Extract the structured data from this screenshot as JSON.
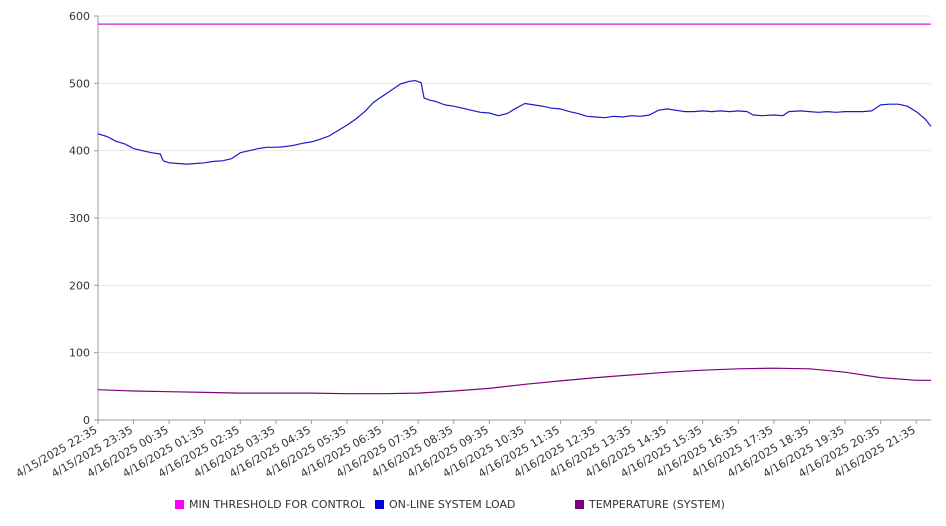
{
  "chart_data": {
    "type": "line",
    "ylim": [
      0,
      600
    ],
    "yticks": [
      0,
      100,
      200,
      300,
      400,
      500,
      600
    ],
    "grid": true,
    "legend_position": "bottom",
    "x_start": "4/15/2025 22:35",
    "x_end": "4/16/2025 22:00",
    "xtick_labels": [
      "4/15/2025 22:35",
      "4/15/2025 23:35",
      "4/16/2025 00:35",
      "4/16/2025 01:35",
      "4/16/2025 02:35",
      "4/16/2025 03:35",
      "4/16/2025 04:35",
      "4/16/2025 05:35",
      "4/16/2025 06:35",
      "4/16/2025 07:35",
      "4/16/2025 08:35",
      "4/16/2025 09:35",
      "4/16/2025 10:35",
      "4/16/2025 11:35",
      "4/16/2025 12:35",
      "4/16/2025 13:35",
      "4/16/2025 14:35",
      "4/16/2025 15:35",
      "4/16/2025 16:35",
      "4/16/2025 17:35",
      "4/16/2025 18:35",
      "4/16/2025 19:35",
      "4/16/2025 20:35",
      "4/16/2025 21:35"
    ],
    "series": [
      {
        "name": "MIN THRESHOLD FOR CONTROL",
        "color": "#cc22cc",
        "points": [
          [
            "4/15/2025 22:35",
            588
          ],
          [
            "4/16/2025 22:00",
            588
          ]
        ]
      },
      {
        "name": "ON-LINE SYSTEM LOAD",
        "color": "#1a1acc",
        "points": [
          [
            "4/15/2025 22:35",
            425
          ],
          [
            "4/15/2025 22:50",
            421
          ],
          [
            "4/15/2025 23:05",
            414
          ],
          [
            "4/15/2025 23:20",
            410
          ],
          [
            "4/15/2025 23:35",
            403
          ],
          [
            "4/15/2025 23:50",
            400
          ],
          [
            "4/16/2025 00:05",
            397
          ],
          [
            "4/16/2025 00:20",
            395
          ],
          [
            "4/16/2025 00:25",
            385
          ],
          [
            "4/16/2025 00:35",
            382
          ],
          [
            "4/16/2025 00:50",
            381
          ],
          [
            "4/16/2025 01:05",
            380
          ],
          [
            "4/16/2025 01:20",
            381
          ],
          [
            "4/16/2025 01:35",
            382
          ],
          [
            "4/16/2025 01:50",
            384
          ],
          [
            "4/16/2025 02:05",
            385
          ],
          [
            "4/16/2025 02:20",
            388
          ],
          [
            "4/16/2025 02:35",
            397
          ],
          [
            "4/16/2025 02:50",
            400
          ],
          [
            "4/16/2025 03:05",
            403
          ],
          [
            "4/16/2025 03:20",
            405
          ],
          [
            "4/16/2025 03:35",
            405
          ],
          [
            "4/16/2025 03:50",
            406
          ],
          [
            "4/16/2025 04:05",
            408
          ],
          [
            "4/16/2025 04:20",
            411
          ],
          [
            "4/16/2025 04:35",
            413
          ],
          [
            "4/16/2025 04:50",
            417
          ],
          [
            "4/16/2025 05:05",
            422
          ],
          [
            "4/16/2025 05:20",
            430
          ],
          [
            "4/16/2025 05:35",
            438
          ],
          [
            "4/16/2025 05:50",
            447
          ],
          [
            "4/16/2025 06:05",
            458
          ],
          [
            "4/16/2025 06:20",
            472
          ],
          [
            "4/16/2025 06:35",
            481
          ],
          [
            "4/16/2025 06:50",
            490
          ],
          [
            "4/16/2025 07:05",
            499
          ],
          [
            "4/16/2025 07:20",
            503
          ],
          [
            "4/16/2025 07:30",
            504
          ],
          [
            "4/16/2025 07:40",
            501
          ],
          [
            "4/16/2025 07:45",
            478
          ],
          [
            "4/16/2025 07:55",
            475
          ],
          [
            "4/16/2025 08:05",
            473
          ],
          [
            "4/16/2025 08:20",
            468
          ],
          [
            "4/16/2025 08:35",
            466
          ],
          [
            "4/16/2025 08:50",
            463
          ],
          [
            "4/16/2025 09:05",
            460
          ],
          [
            "4/16/2025 09:20",
            457
          ],
          [
            "4/16/2025 09:35",
            456
          ],
          [
            "4/16/2025 09:50",
            452
          ],
          [
            "4/16/2025 10:05",
            455
          ],
          [
            "4/16/2025 10:20",
            463
          ],
          [
            "4/16/2025 10:35",
            470
          ],
          [
            "4/16/2025 10:50",
            468
          ],
          [
            "4/16/2025 11:05",
            466
          ],
          [
            "4/16/2025 11:20",
            463
          ],
          [
            "4/16/2025 11:35",
            462
          ],
          [
            "4/16/2025 11:50",
            458
          ],
          [
            "4/16/2025 12:05",
            455
          ],
          [
            "4/16/2025 12:20",
            451
          ],
          [
            "4/16/2025 12:35",
            450
          ],
          [
            "4/16/2025 12:50",
            449
          ],
          [
            "4/16/2025 13:05",
            451
          ],
          [
            "4/16/2025 13:20",
            450
          ],
          [
            "4/16/2025 13:35",
            452
          ],
          [
            "4/16/2025 13:50",
            451
          ],
          [
            "4/16/2025 14:05",
            453
          ],
          [
            "4/16/2025 14:20",
            460
          ],
          [
            "4/16/2025 14:35",
            462
          ],
          [
            "4/16/2025 14:50",
            460
          ],
          [
            "4/16/2025 15:05",
            458
          ],
          [
            "4/16/2025 15:20",
            458
          ],
          [
            "4/16/2025 15:35",
            459
          ],
          [
            "4/16/2025 15:50",
            458
          ],
          [
            "4/16/2025 16:05",
            459
          ],
          [
            "4/16/2025 16:20",
            458
          ],
          [
            "4/16/2025 16:35",
            459
          ],
          [
            "4/16/2025 16:50",
            458
          ],
          [
            "4/16/2025 17:00",
            453
          ],
          [
            "4/16/2025 17:15",
            452
          ],
          [
            "4/16/2025 17:35",
            453
          ],
          [
            "4/16/2025 17:50",
            452
          ],
          [
            "4/16/2025 18:00",
            458
          ],
          [
            "4/16/2025 18:20",
            459
          ],
          [
            "4/16/2025 18:35",
            458
          ],
          [
            "4/16/2025 18:50",
            457
          ],
          [
            "4/16/2025 19:05",
            458
          ],
          [
            "4/16/2025 19:20",
            457
          ],
          [
            "4/16/2025 19:35",
            458
          ],
          [
            "4/16/2025 19:50",
            458
          ],
          [
            "4/16/2025 20:05",
            458
          ],
          [
            "4/16/2025 20:20",
            459
          ],
          [
            "4/16/2025 20:35",
            468
          ],
          [
            "4/16/2025 20:50",
            469
          ],
          [
            "4/16/2025 21:05",
            469
          ],
          [
            "4/16/2025 21:20",
            466
          ],
          [
            "4/16/2025 21:35",
            458
          ],
          [
            "4/16/2025 21:50",
            447
          ],
          [
            "4/16/2025 22:00",
            436
          ]
        ]
      },
      {
        "name": "TEMPERATURE (SYSTEM)",
        "color": "#800080",
        "points": [
          [
            "4/15/2025 22:35",
            45
          ],
          [
            "4/15/2025 23:35",
            43
          ],
          [
            "4/16/2025 00:35",
            42
          ],
          [
            "4/16/2025 01:35",
            41
          ],
          [
            "4/16/2025 02:35",
            40
          ],
          [
            "4/16/2025 03:35",
            40
          ],
          [
            "4/16/2025 04:35",
            40
          ],
          [
            "4/16/2025 05:35",
            39
          ],
          [
            "4/16/2025 06:35",
            39
          ],
          [
            "4/16/2025 07:35",
            40
          ],
          [
            "4/16/2025 08:35",
            43
          ],
          [
            "4/16/2025 09:35",
            47
          ],
          [
            "4/16/2025 10:35",
            53
          ],
          [
            "4/16/2025 11:35",
            58
          ],
          [
            "4/16/2025 12:35",
            63
          ],
          [
            "4/16/2025 13:35",
            67
          ],
          [
            "4/16/2025 14:35",
            71
          ],
          [
            "4/16/2025 15:35",
            74
          ],
          [
            "4/16/2025 16:35",
            76
          ],
          [
            "4/16/2025 17:35",
            77
          ],
          [
            "4/16/2025 18:35",
            76
          ],
          [
            "4/16/2025 19:35",
            71
          ],
          [
            "4/16/2025 20:35",
            63
          ],
          [
            "4/16/2025 21:35",
            59
          ],
          [
            "4/16/2025 22:00",
            59
          ]
        ]
      }
    ]
  }
}
